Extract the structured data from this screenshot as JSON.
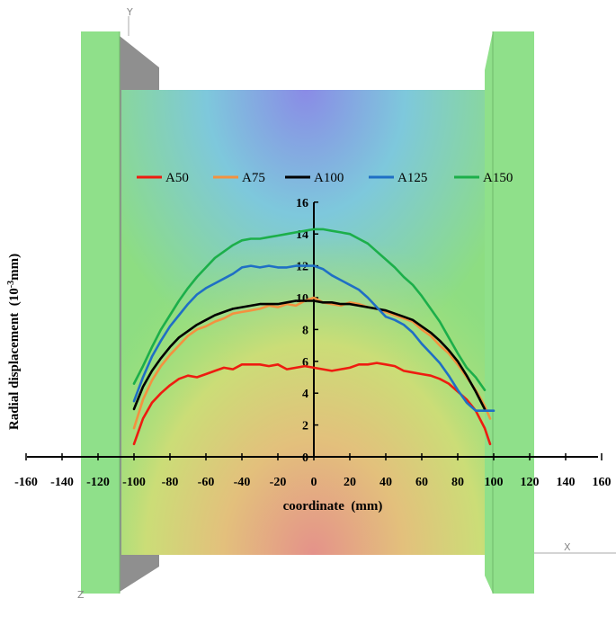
{
  "chart_data": {
    "type": "line",
    "title": "",
    "xlabel": "coordinate  (mm)",
    "ylabel": "Radial displacement  (10",
    "ylabel_sup": "-3",
    "ylabel_tail": "mm)",
    "xlim": [
      -160,
      160
    ],
    "ylim": [
      0,
      16
    ],
    "xticks": [
      "-160",
      "-140",
      "-120",
      "-100",
      "-80",
      "-60",
      "-40",
      "-20",
      "0",
      "20",
      "40",
      "60",
      "80",
      "100",
      "120",
      "140",
      "160"
    ],
    "yticks": [
      "0",
      "2",
      "4",
      "6",
      "8",
      "10",
      "12",
      "14",
      "16"
    ],
    "grid": false,
    "legend_position": "top",
    "background_axes": {
      "y": "Y",
      "x": "X",
      "z": "Z"
    },
    "series": [
      {
        "name": "A50",
        "color": "#ee1c10",
        "x": [
          -100,
          -95,
          -90,
          -85,
          -80,
          -75,
          -70,
          -65,
          -60,
          -55,
          -50,
          -45,
          -40,
          -35,
          -30,
          -25,
          -20,
          -15,
          -10,
          -5,
          0,
          5,
          10,
          15,
          20,
          25,
          30,
          35,
          40,
          45,
          50,
          55,
          60,
          65,
          70,
          75,
          80,
          85,
          90,
          95,
          98
        ],
        "y": [
          0.8,
          2.4,
          3.4,
          4.0,
          4.5,
          4.9,
          5.1,
          5.0,
          5.2,
          5.4,
          5.6,
          5.5,
          5.8,
          5.8,
          5.8,
          5.7,
          5.8,
          5.5,
          5.6,
          5.7,
          5.6,
          5.5,
          5.4,
          5.5,
          5.6,
          5.8,
          5.8,
          5.9,
          5.8,
          5.7,
          5.4,
          5.3,
          5.2,
          5.1,
          4.9,
          4.6,
          4.1,
          3.6,
          2.9,
          1.8,
          0.8
        ]
      },
      {
        "name": "A75",
        "color": "#f4913f",
        "x": [
          -100,
          -95,
          -90,
          -85,
          -80,
          -75,
          -70,
          -65,
          -60,
          -55,
          -50,
          -45,
          -40,
          -35,
          -30,
          -25,
          -20,
          -15,
          -10,
          -5,
          0,
          5,
          10,
          15,
          20,
          25,
          30,
          35,
          40,
          45,
          50,
          55,
          60,
          65,
          70,
          75,
          80,
          85,
          90,
          95,
          98
        ],
        "y": [
          1.8,
          3.6,
          4.8,
          5.7,
          6.4,
          7.0,
          7.6,
          8.0,
          8.2,
          8.5,
          8.7,
          9.0,
          9.1,
          9.2,
          9.3,
          9.5,
          9.4,
          9.6,
          9.5,
          9.8,
          10.0,
          9.7,
          9.6,
          9.5,
          9.7,
          9.6,
          9.4,
          9.3,
          9.1,
          8.9,
          8.7,
          8.5,
          8.0,
          7.6,
          7.0,
          6.5,
          5.8,
          5.0,
          4.2,
          3.2,
          2.4
        ]
      },
      {
        "name": "A100",
        "color": "#000000",
        "x": [
          -100,
          -95,
          -90,
          -85,
          -80,
          -75,
          -70,
          -65,
          -60,
          -55,
          -50,
          -45,
          -40,
          -35,
          -30,
          -25,
          -20,
          -15,
          -10,
          -5,
          0,
          5,
          10,
          15,
          20,
          25,
          30,
          35,
          40,
          45,
          50,
          55,
          60,
          65,
          70,
          75,
          80,
          85,
          90,
          95
        ],
        "y": [
          3.0,
          4.4,
          5.4,
          6.2,
          6.9,
          7.5,
          7.9,
          8.3,
          8.6,
          8.9,
          9.1,
          9.3,
          9.4,
          9.5,
          9.6,
          9.6,
          9.6,
          9.7,
          9.8,
          9.8,
          9.8,
          9.7,
          9.7,
          9.6,
          9.6,
          9.5,
          9.4,
          9.3,
          9.2,
          9.0,
          8.8,
          8.6,
          8.2,
          7.8,
          7.3,
          6.7,
          6.0,
          5.1,
          4.1,
          3.0
        ]
      },
      {
        "name": "A125",
        "color": "#1f6fc5",
        "x": [
          -100,
          -95,
          -90,
          -85,
          -80,
          -75,
          -70,
          -65,
          -60,
          -55,
          -50,
          -45,
          -40,
          -35,
          -30,
          -25,
          -20,
          -15,
          -10,
          -5,
          0,
          5,
          10,
          15,
          20,
          25,
          30,
          35,
          40,
          45,
          50,
          55,
          60,
          65,
          70,
          75,
          80,
          85,
          90,
          95,
          100
        ],
        "y": [
          3.5,
          5.0,
          6.3,
          7.3,
          8.2,
          8.9,
          9.6,
          10.2,
          10.6,
          10.9,
          11.2,
          11.5,
          11.9,
          12.0,
          11.9,
          12.0,
          11.9,
          11.9,
          12.0,
          12.0,
          12.0,
          11.8,
          11.4,
          11.1,
          10.8,
          10.5,
          10.0,
          9.4,
          8.8,
          8.6,
          8.3,
          7.8,
          7.1,
          6.5,
          5.9,
          5.1,
          4.2,
          3.4,
          2.9,
          2.9,
          2.9
        ]
      },
      {
        "name": "A150",
        "color": "#1caf4a",
        "x": [
          -100,
          -95,
          -90,
          -85,
          -80,
          -75,
          -70,
          -65,
          -60,
          -55,
          -50,
          -45,
          -40,
          -35,
          -30,
          -25,
          -20,
          -15,
          -10,
          -5,
          0,
          5,
          10,
          15,
          20,
          25,
          30,
          35,
          40,
          45,
          50,
          55,
          60,
          65,
          70,
          75,
          80,
          85,
          90,
          95
        ],
        "y": [
          4.6,
          5.7,
          6.9,
          8.0,
          8.9,
          9.8,
          10.6,
          11.3,
          11.9,
          12.5,
          12.9,
          13.3,
          13.6,
          13.7,
          13.7,
          13.8,
          13.9,
          14.0,
          14.1,
          14.2,
          14.3,
          14.3,
          14.2,
          14.1,
          14.0,
          13.7,
          13.4,
          12.9,
          12.4,
          11.9,
          11.3,
          10.8,
          10.1,
          9.3,
          8.5,
          7.5,
          6.5,
          5.6,
          5.0,
          4.2
        ]
      }
    ]
  }
}
